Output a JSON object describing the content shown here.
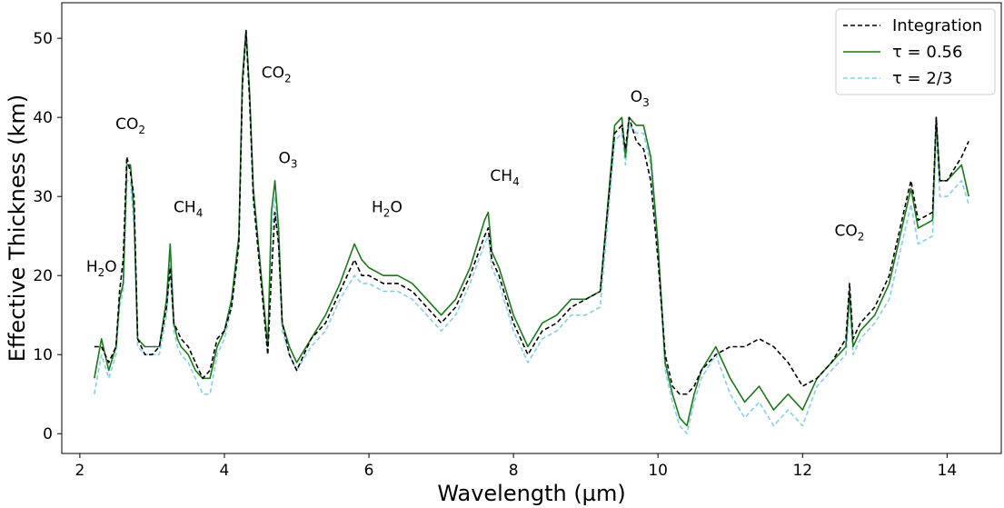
{
  "chart_data": {
    "type": "line",
    "xlabel": "Wavelength (µm)",
    "ylabel": "Effective Thickness (km)",
    "xlim": [
      1.75,
      14.75
    ],
    "ylim": [
      -2.5,
      54.5
    ],
    "xticks": [
      2,
      4,
      6,
      8,
      10,
      12,
      14
    ],
    "yticks": [
      0,
      10,
      20,
      30,
      40,
      50
    ],
    "grid": false,
    "legend_position": "top-right",
    "x": [
      2.2,
      2.3,
      2.4,
      2.5,
      2.55,
      2.6,
      2.65,
      2.7,
      2.75,
      2.8,
      2.9,
      3.0,
      3.1,
      3.2,
      3.25,
      3.3,
      3.35,
      3.4,
      3.5,
      3.6,
      3.7,
      3.8,
      3.9,
      4.0,
      4.1,
      4.2,
      4.25,
      4.3,
      4.35,
      4.4,
      4.5,
      4.6,
      4.65,
      4.7,
      4.75,
      4.8,
      4.9,
      5.0,
      5.2,
      5.4,
      5.6,
      5.8,
      5.9,
      6.0,
      6.2,
      6.4,
      6.6,
      6.8,
      7.0,
      7.2,
      7.4,
      7.6,
      7.65,
      7.7,
      7.8,
      8.0,
      8.2,
      8.4,
      8.6,
      8.8,
      9.0,
      9.2,
      9.4,
      9.5,
      9.55,
      9.6,
      9.7,
      9.8,
      9.9,
      10.0,
      10.1,
      10.2,
      10.3,
      10.4,
      10.5,
      10.6,
      10.8,
      11.0,
      11.2,
      11.4,
      11.6,
      11.8,
      12.0,
      12.2,
      12.4,
      12.6,
      12.65,
      12.7,
      12.8,
      13.0,
      13.2,
      13.4,
      13.5,
      13.6,
      13.8,
      13.85,
      13.9,
      14.0,
      14.2,
      14.3
    ],
    "series": [
      {
        "name": "Integration",
        "color": "#000000",
        "style": "dashed",
        "values": [
          11,
          11,
          9,
          11,
          18,
          22,
          35,
          33,
          30,
          12,
          10,
          10,
          11,
          16,
          21,
          14,
          13,
          12,
          11,
          9,
          7,
          8,
          12,
          13,
          16,
          24,
          44,
          51,
          42,
          30,
          20,
          10,
          20,
          28,
          24,
          14,
          10,
          8,
          12,
          14,
          18,
          22,
          20,
          20,
          19,
          19,
          18,
          16,
          14,
          16,
          20,
          25,
          26,
          22,
          20,
          14,
          10,
          13,
          14,
          16,
          17,
          18,
          38,
          39,
          36,
          40,
          37,
          36,
          32,
          22,
          10,
          6,
          5,
          5,
          6,
          8,
          10,
          11,
          11,
          12,
          11,
          9,
          6,
          7,
          9,
          12,
          19,
          12,
          14,
          16,
          20,
          28,
          32,
          27,
          28,
          40,
          32,
          32,
          35,
          37
        ]
      },
      {
        "name": "τ = 0.56",
        "color": "#1a7a1a",
        "style": "solid",
        "values": [
          7,
          12,
          8,
          11,
          17,
          19,
          34,
          34,
          28,
          12,
          11,
          11,
          11,
          17,
          24,
          14,
          12,
          11,
          10,
          8,
          7,
          7,
          11,
          13,
          17,
          25,
          45,
          51,
          43,
          31,
          21,
          11,
          28,
          32,
          26,
          14,
          11,
          9,
          12,
          15,
          19,
          24,
          22,
          21,
          20,
          20,
          19,
          17,
          15,
          17,
          21,
          27,
          28,
          23,
          21,
          15,
          11,
          14,
          15,
          17,
          17,
          18,
          39,
          40,
          35,
          40,
          39,
          39,
          35,
          24,
          9,
          5,
          2,
          1,
          5,
          8,
          11,
          7,
          4,
          6,
          3,
          5,
          3,
          7,
          9,
          11,
          18,
          11,
          13,
          15,
          19,
          27,
          31,
          26,
          27,
          40,
          32,
          32,
          34,
          30
        ]
      },
      {
        "name": "τ = 2/3",
        "color": "#87ceeb",
        "style": "dashed",
        "values": [
          5,
          10,
          7,
          10,
          16,
          18,
          32,
          32,
          26,
          11,
          10,
          10,
          10,
          15,
          22,
          13,
          11,
          10,
          9,
          7,
          5,
          5,
          10,
          12,
          16,
          24,
          44,
          50,
          42,
          29,
          20,
          10,
          25,
          30,
          24,
          13,
          10,
          8,
          11,
          13,
          17,
          20,
          19,
          19,
          18,
          18,
          17,
          15,
          13,
          15,
          19,
          24,
          25,
          21,
          19,
          13,
          9,
          12,
          13,
          15,
          15,
          16,
          37,
          38,
          34,
          39,
          38,
          38,
          34,
          23,
          8,
          4,
          1,
          0,
          4,
          7,
          10,
          5,
          2,
          4,
          1,
          3,
          1,
          6,
          8,
          10,
          16,
          10,
          12,
          14,
          17,
          25,
          29,
          24,
          25,
          38,
          30,
          30,
          32,
          29
        ]
      }
    ],
    "annotations": [
      {
        "text": "H",
        "sub": "2",
        "tail": "O",
        "x": 2.3,
        "y": 20.5
      },
      {
        "text": "CO",
        "sub": "2",
        "tail": "",
        "x": 2.7,
        "y": 38.5
      },
      {
        "text": "CH",
        "sub": "4",
        "tail": "",
        "x": 3.5,
        "y": 28.0
      },
      {
        "text": "CO",
        "sub": "2",
        "tail": "",
        "x": 4.72,
        "y": 45.0
      },
      {
        "text": "O",
        "sub": "3",
        "tail": "",
        "x": 4.88,
        "y": 34.2
      },
      {
        "text": "H",
        "sub": "2",
        "tail": "O",
        "x": 6.25,
        "y": 28.0
      },
      {
        "text": "CH",
        "sub": "4",
        "tail": "",
        "x": 7.88,
        "y": 32.0
      },
      {
        "text": "O",
        "sub": "3",
        "tail": "",
        "x": 9.75,
        "y": 42.0
      },
      {
        "text": "CO",
        "sub": "2",
        "tail": "",
        "x": 12.65,
        "y": 25.0
      }
    ]
  }
}
